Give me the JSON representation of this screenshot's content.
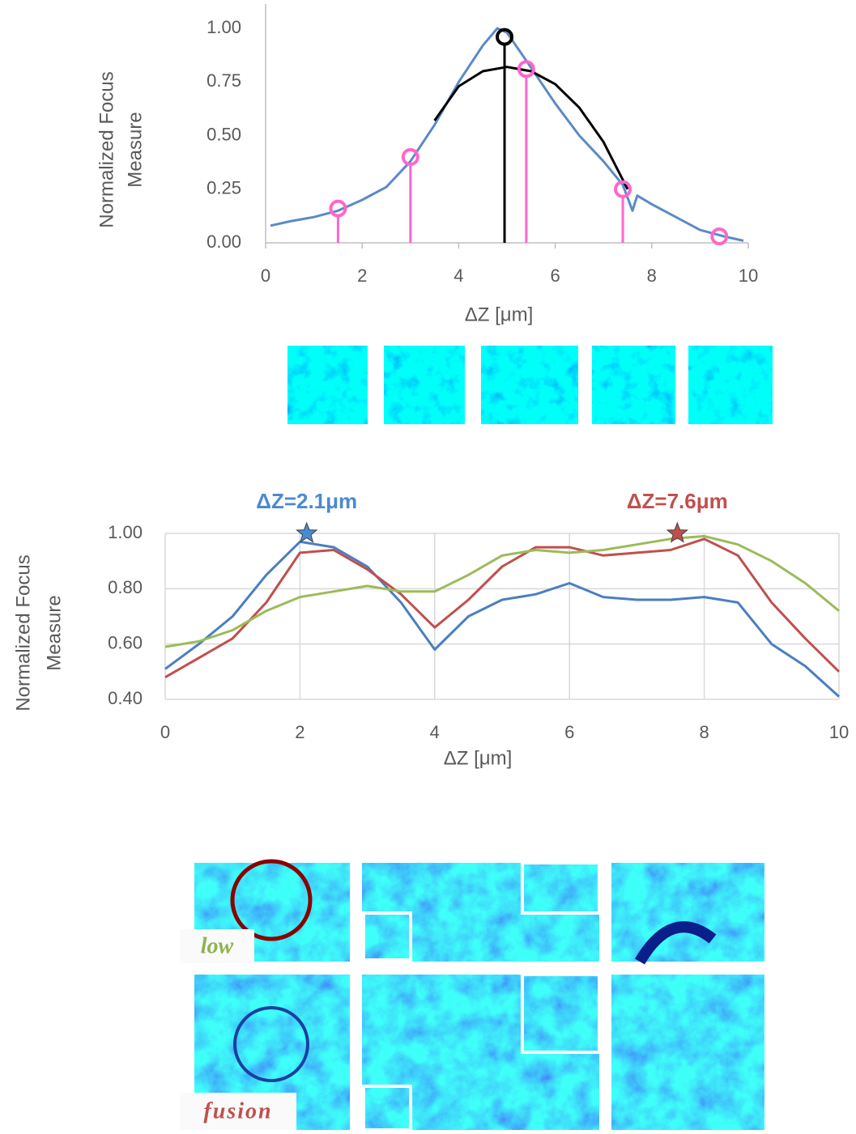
{
  "chart_data": [
    {
      "type": "line",
      "xlabel": "ΔZ [μm]",
      "ylabel": [
        "Normalized Focus",
        "Measure"
      ],
      "xlim": [
        0,
        10
      ],
      "ylim": [
        0,
        1
      ],
      "xticks": [
        0,
        2,
        4,
        6,
        8,
        10
      ],
      "yticks": [
        {
          "value": 0,
          "label": "0.00"
        },
        {
          "value": 0.25,
          "label": "0.25"
        },
        {
          "value": 0.5,
          "label": "0.50"
        },
        {
          "value": 0.75,
          "label": "0.75"
        },
        {
          "value": 1,
          "label": "1.00"
        }
      ],
      "grid": false,
      "series": [
        {
          "color": "#5b8ac6",
          "style": "line",
          "x": [
            0.1,
            0.5,
            1,
            1.5,
            2,
            2.5,
            3,
            3.5,
            4,
            4.5,
            4.8,
            5,
            5.4,
            6,
            6.5,
            7,
            7.4,
            7.6,
            7.7,
            8,
            8.5,
            9,
            9.5,
            9.9
          ],
          "values": [
            0.08,
            0.1,
            0.12,
            0.15,
            0.2,
            0.26,
            0.38,
            0.55,
            0.75,
            0.92,
            1.0,
            0.98,
            0.85,
            0.65,
            0.5,
            0.38,
            0.27,
            0.15,
            0.22,
            0.18,
            0.12,
            0.06,
            0.03,
            0.01
          ]
        },
        {
          "color": "#000000",
          "style": "line",
          "x": [
            3.5,
            4,
            4.5,
            5,
            5.5,
            6,
            6.5,
            7,
            7.5
          ],
          "values": [
            0.57,
            0.73,
            0.8,
            0.82,
            0.8,
            0.74,
            0.63,
            0.47,
            0.25
          ]
        },
        {
          "color": "#ff66cc",
          "style": "stem",
          "x": [
            1.5,
            3,
            5.4,
            7.4,
            9.4
          ],
          "values": [
            0.16,
            0.4,
            0.81,
            0.25,
            0.03
          ]
        },
        {
          "color": "#000000",
          "style": "stem",
          "x": [
            4.95
          ],
          "values": [
            0.96
          ]
        }
      ]
    },
    {
      "type": "line",
      "xlabel": "ΔZ [μm]",
      "ylabel": [
        "Normalized Focus",
        "Measure"
      ],
      "xlim": [
        0,
        10
      ],
      "ylim": [
        0.4,
        1
      ],
      "xticks": [
        0,
        2,
        4,
        6,
        8,
        10
      ],
      "yticks": [
        {
          "value": 0.4,
          "label": "0.40"
        },
        {
          "value": 0.6,
          "label": "0.60"
        },
        {
          "value": 0.8,
          "label": "0.80"
        },
        {
          "value": 1,
          "label": "1.00"
        }
      ],
      "grid": true,
      "series": [
        {
          "color": "#4a7ec2",
          "style": "line",
          "x": [
            0,
            0.5,
            1,
            1.5,
            2,
            2.5,
            3,
            3.5,
            4,
            4.5,
            5,
            5.5,
            6,
            6.5,
            7,
            7.5,
            8,
            8.5,
            9,
            9.5,
            10
          ],
          "values": [
            0.51,
            0.6,
            0.7,
            0.85,
            0.97,
            0.95,
            0.88,
            0.75,
            0.58,
            0.7,
            0.76,
            0.78,
            0.82,
            0.77,
            0.76,
            0.76,
            0.77,
            0.75,
            0.6,
            0.52,
            0.41
          ]
        },
        {
          "color": "#c0504d",
          "style": "line",
          "x": [
            0,
            0.5,
            1,
            1.5,
            2,
            2.5,
            3,
            3.5,
            4,
            4.5,
            5,
            5.5,
            6,
            6.5,
            7,
            7.5,
            8,
            8.5,
            9,
            9.5,
            10
          ],
          "values": [
            0.48,
            0.55,
            0.62,
            0.75,
            0.93,
            0.94,
            0.87,
            0.78,
            0.66,
            0.76,
            0.88,
            0.95,
            0.95,
            0.92,
            0.93,
            0.94,
            0.98,
            0.92,
            0.75,
            0.62,
            0.5
          ]
        },
        {
          "color": "#9bbb59",
          "style": "line",
          "x": [
            0,
            0.5,
            1,
            1.5,
            2,
            2.5,
            3,
            3.5,
            4,
            4.5,
            5,
            5.5,
            6,
            6.5,
            7,
            7.5,
            8,
            8.5,
            9,
            9.5,
            10
          ],
          "values": [
            0.59,
            0.61,
            0.65,
            0.72,
            0.77,
            0.79,
            0.81,
            0.79,
            0.79,
            0.85,
            0.92,
            0.94,
            0.93,
            0.94,
            0.96,
            0.98,
            0.99,
            0.96,
            0.9,
            0.82,
            0.72
          ]
        }
      ],
      "annotations": [
        {
          "text": "ΔZ=2.1μm",
          "x": 2.1,
          "y": 1.0,
          "color": "#4a8ad0"
        },
        {
          "text": "ΔZ=7.6μm",
          "x": 7.6,
          "y": 1.0,
          "color": "#c0504d"
        }
      ]
    }
  ],
  "figure_labels": [
    {
      "text": "low",
      "color": "#8fb24f"
    },
    {
      "text": "fusion",
      "color": "#c0504d"
    }
  ]
}
